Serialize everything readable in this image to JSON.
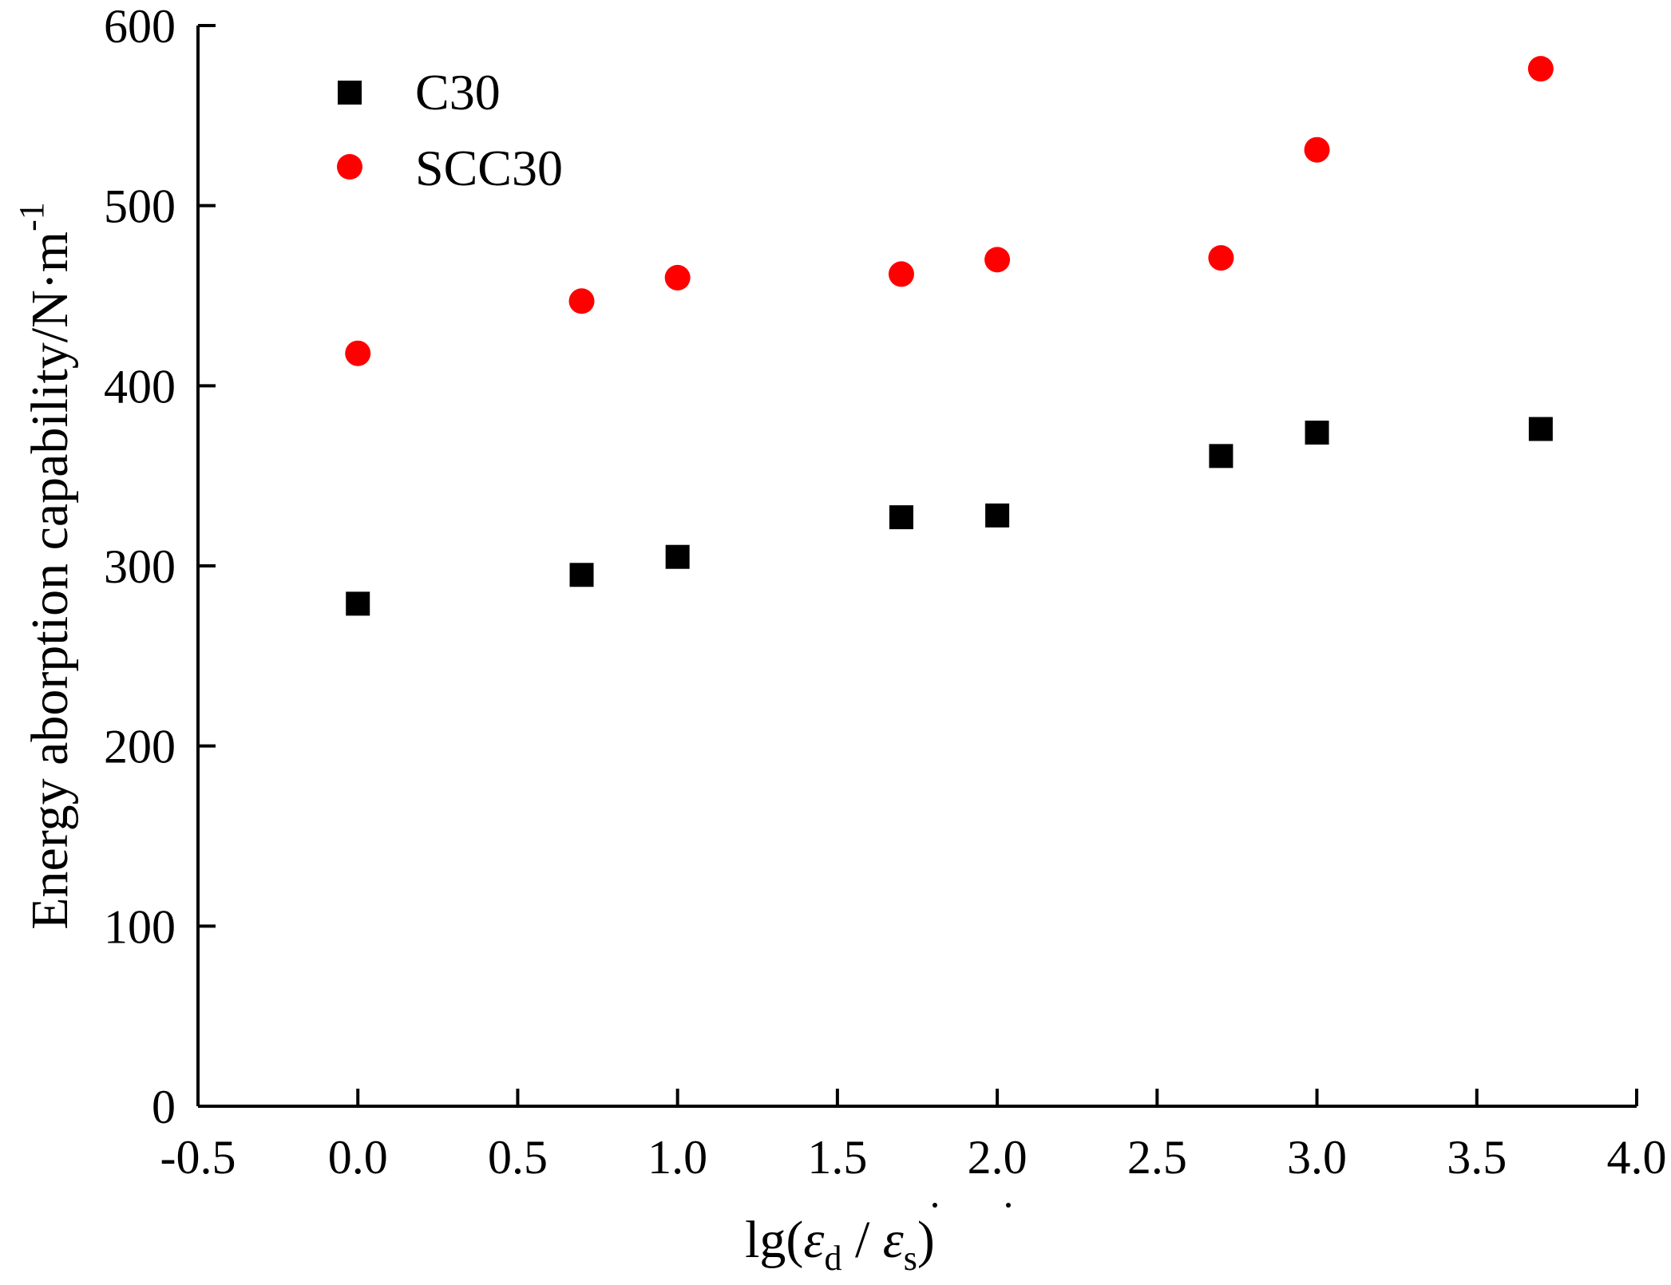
{
  "chart_data": {
    "type": "scatter",
    "title": "",
    "xlabel": {
      "prefix": "lg(",
      "num_symbol": "ε",
      "num_sub": "d",
      "separator": " / ",
      "den_symbol": "ε",
      "den_sub": "s",
      "suffix": ")"
    },
    "ylabel": {
      "main": "Energy aborption capability/N·m",
      "superscript": "-1"
    },
    "xlim": [
      -0.5,
      4.0
    ],
    "ylim": [
      0,
      600
    ],
    "x_ticks": [
      "-0.5",
      "0.0",
      "0.5",
      "1.0",
      "1.5",
      "2.0",
      "2.5",
      "3.0",
      "3.5",
      "4.0"
    ],
    "y_ticks": [
      "0",
      "100",
      "200",
      "300",
      "400",
      "500",
      "600"
    ],
    "grid": false,
    "legend_position": "top-left",
    "series": [
      {
        "name": "C30",
        "marker": "square",
        "color": "#000000",
        "x": [
          0.0,
          0.7,
          1.0,
          1.7,
          2.0,
          2.7,
          3.0,
          3.7
        ],
        "y": [
          279,
          295,
          305,
          327,
          328,
          361,
          374,
          376
        ]
      },
      {
        "name": "SCC30",
        "marker": "circle",
        "color": "#ff0000",
        "x": [
          0.0,
          0.7,
          1.0,
          1.7,
          2.0,
          2.7,
          3.0,
          3.7
        ],
        "y": [
          418,
          447,
          460,
          462,
          470,
          471,
          531,
          576
        ]
      }
    ]
  }
}
